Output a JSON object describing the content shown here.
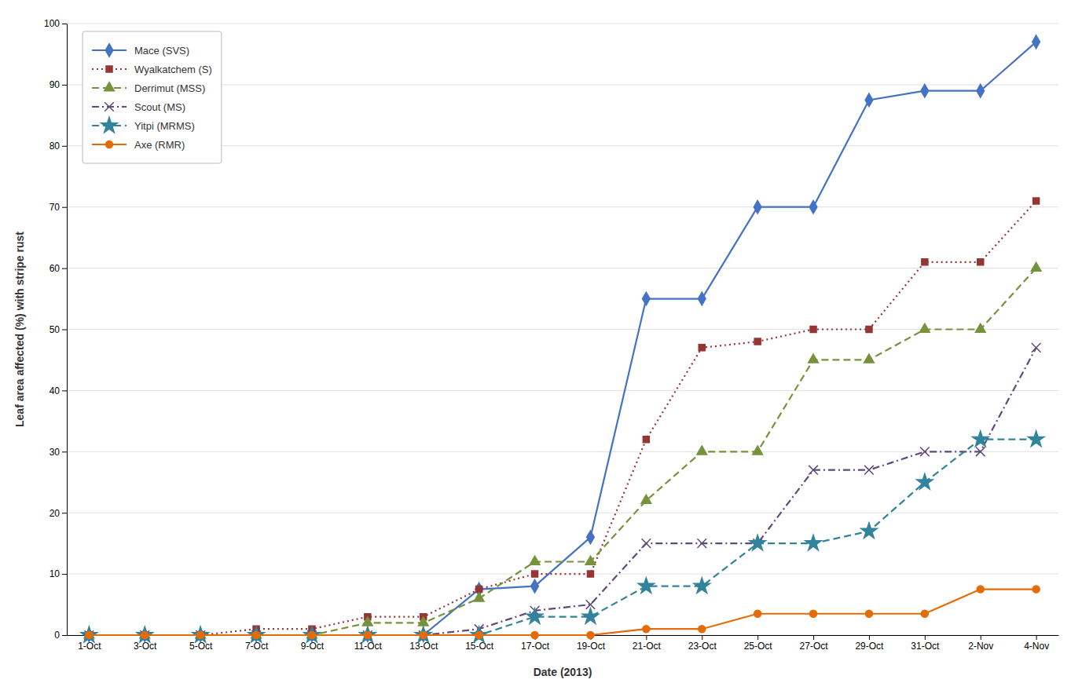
{
  "chart_data": {
    "type": "line",
    "categories": [
      "1-Oct",
      "3-Oct",
      "5-Oct",
      "7-Oct",
      "9-Oct",
      "11-Oct",
      "13-Oct",
      "15-Oct",
      "17-Oct",
      "19-Oct",
      "21-Oct",
      "23-Oct",
      "25-Oct",
      "27-Oct",
      "29-Oct",
      "31-Oct",
      "2-Nov",
      "4-Nov"
    ],
    "series": [
      {
        "name": "Mace (SVS)",
        "color": "#4472C4",
        "line_style": "solid",
        "marker": "diamond",
        "values": [
          0,
          0,
          0,
          0,
          0,
          0,
          0,
          7.5,
          8,
          16,
          55,
          55,
          70,
          70,
          87.5,
          89,
          89,
          97
        ]
      },
      {
        "name": "Wyalkatchem (S)",
        "color": "#943634",
        "line_style": "dotted",
        "marker": "square",
        "values": [
          0,
          0,
          0,
          1,
          1,
          3,
          3,
          7.5,
          10,
          10,
          32,
          47,
          48,
          50,
          50,
          61,
          61,
          71
        ]
      },
      {
        "name": "Derrimut (MSS)",
        "color": "#76933C",
        "line_style": "dashed",
        "marker": "triangle",
        "values": [
          0,
          0,
          0,
          0,
          0,
          2,
          2,
          6,
          12,
          12,
          22,
          30,
          30,
          45,
          45,
          50,
          50,
          60
        ]
      },
      {
        "name": "Scout (MS)",
        "color": "#604A7B",
        "line_style": "dashdot",
        "marker": "x",
        "values": [
          0,
          0,
          0,
          0,
          0,
          0,
          0,
          1,
          4,
          5,
          15,
          15,
          15,
          27,
          27,
          30,
          30,
          47
        ]
      },
      {
        "name": "Yitpi (MRMS)",
        "color": "#31849B",
        "line_style": "dashed",
        "marker": "star",
        "values": [
          0,
          0,
          0,
          0,
          0,
          0,
          0,
          0,
          3,
          3,
          8,
          8,
          15,
          15,
          17,
          25,
          32,
          32
        ]
      },
      {
        "name": "Axe (RMR)",
        "color": "#E36C09",
        "line_style": "solid",
        "marker": "circle",
        "values": [
          0,
          0,
          0,
          0,
          0,
          0,
          0,
          0,
          0,
          0,
          1,
          1,
          3.5,
          3.5,
          3.5,
          3.5,
          7.5,
          7.5
        ]
      }
    ],
    "xlabel": "Date (2013)",
    "ylabel": "Leaf area affected (%) with stripe rust",
    "ylim": [
      0,
      100
    ],
    "yticks": [
      0,
      10,
      20,
      30,
      40,
      50,
      60,
      70,
      80,
      90,
      100
    ],
    "grid": true,
    "legend": "upper left"
  }
}
